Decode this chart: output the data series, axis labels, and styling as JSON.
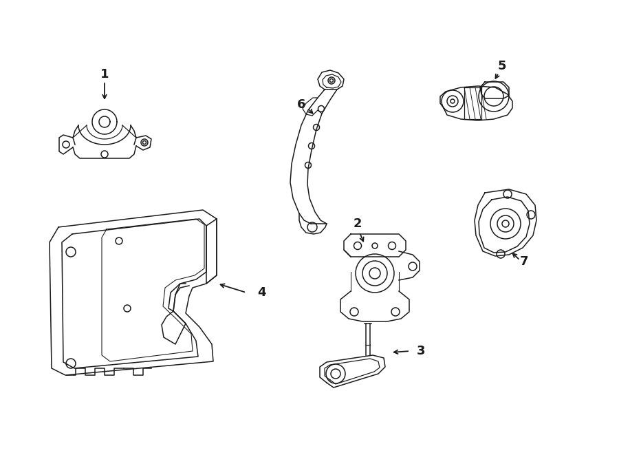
{
  "background_color": "#ffffff",
  "line_color": "#1a1a1a",
  "lw": 1.1,
  "figsize": [
    9.0,
    6.61
  ],
  "dpi": 100
}
